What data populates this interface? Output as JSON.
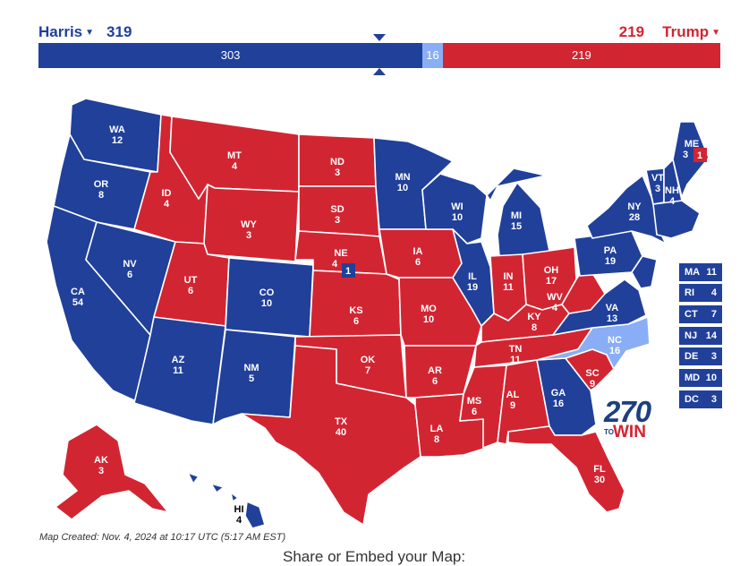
{
  "header": {
    "dem": {
      "name": "Harris",
      "votes": "319",
      "color": "#20409a"
    },
    "gop": {
      "name": "Trump",
      "votes": "219",
      "color": "#d22532"
    }
  },
  "bar": {
    "segments": [
      {
        "label": "303",
        "value": 303,
        "color": "#20409a"
      },
      {
        "label": "16",
        "value": 16,
        "color": "#8aaef5"
      },
      {
        "label": "219",
        "value": 219,
        "color": "#d22532"
      }
    ],
    "total": 538,
    "threshold": 270
  },
  "colors": {
    "dem": "#20409a",
    "tossup": "#8aaef5",
    "gop": "#d22532"
  },
  "states": [
    {
      "abbr": "WA",
      "ev": "12"
    },
    {
      "abbr": "OR",
      "ev": "8"
    },
    {
      "abbr": "CA",
      "ev": "54"
    },
    {
      "abbr": "NV",
      "ev": "6"
    },
    {
      "abbr": "ID",
      "ev": "4"
    },
    {
      "abbr": "MT",
      "ev": "4"
    },
    {
      "abbr": "WY",
      "ev": "3"
    },
    {
      "abbr": "UT",
      "ev": "6"
    },
    {
      "abbr": "AZ",
      "ev": "11"
    },
    {
      "abbr": "CO",
      "ev": "10"
    },
    {
      "abbr": "NM",
      "ev": "5"
    },
    {
      "abbr": "ND",
      "ev": "3"
    },
    {
      "abbr": "SD",
      "ev": "3"
    },
    {
      "abbr": "NE",
      "ev": "4"
    },
    {
      "abbr": "KS",
      "ev": "6"
    },
    {
      "abbr": "OK",
      "ev": "7"
    },
    {
      "abbr": "TX",
      "ev": "40"
    },
    {
      "abbr": "MN",
      "ev": "10"
    },
    {
      "abbr": "IA",
      "ev": "6"
    },
    {
      "abbr": "MO",
      "ev": "10"
    },
    {
      "abbr": "AR",
      "ev": "6"
    },
    {
      "abbr": "LA",
      "ev": "8"
    },
    {
      "abbr": "WI",
      "ev": "10"
    },
    {
      "abbr": "IL",
      "ev": "19"
    },
    {
      "abbr": "MI",
      "ev": "15"
    },
    {
      "abbr": "IN",
      "ev": "11"
    },
    {
      "abbr": "OH",
      "ev": "17"
    },
    {
      "abbr": "KY",
      "ev": "8"
    },
    {
      "abbr": "TN",
      "ev": "11"
    },
    {
      "abbr": "MS",
      "ev": "6"
    },
    {
      "abbr": "AL",
      "ev": "9"
    },
    {
      "abbr": "GA",
      "ev": "16"
    },
    {
      "abbr": "FL",
      "ev": "30"
    },
    {
      "abbr": "SC",
      "ev": "9"
    },
    {
      "abbr": "NC",
      "ev": "16"
    },
    {
      "abbr": "VA",
      "ev": "13"
    },
    {
      "abbr": "WV",
      "ev": "4"
    },
    {
      "abbr": "PA",
      "ev": "19"
    },
    {
      "abbr": "NY",
      "ev": "28"
    },
    {
      "abbr": "VT",
      "ev": "3"
    },
    {
      "abbr": "NH",
      "ev": "4"
    },
    {
      "abbr": "ME",
      "ev": "3"
    },
    {
      "abbr": "AK",
      "ev": "3"
    },
    {
      "abbr": "HI",
      "ev": "4"
    }
  ],
  "split_votes": {
    "ne_district": "1",
    "me_district": "1"
  },
  "small_states": [
    {
      "abbr": "MA",
      "ev": "11"
    },
    {
      "abbr": "RI",
      "ev": "4"
    },
    {
      "abbr": "CT",
      "ev": "7"
    },
    {
      "abbr": "NJ",
      "ev": "14"
    },
    {
      "abbr": "DE",
      "ev": "3"
    },
    {
      "abbr": "MD",
      "ev": "10"
    },
    {
      "abbr": "DC",
      "ev": "3"
    }
  ],
  "logo": {
    "number": "270",
    "to": "TO",
    "win": "WIN"
  },
  "footer": {
    "created": "Map Created: Nov. 4, 2024 at 10:17 UTC (5:17 AM EST)",
    "share": "Share or Embed your Map:"
  }
}
